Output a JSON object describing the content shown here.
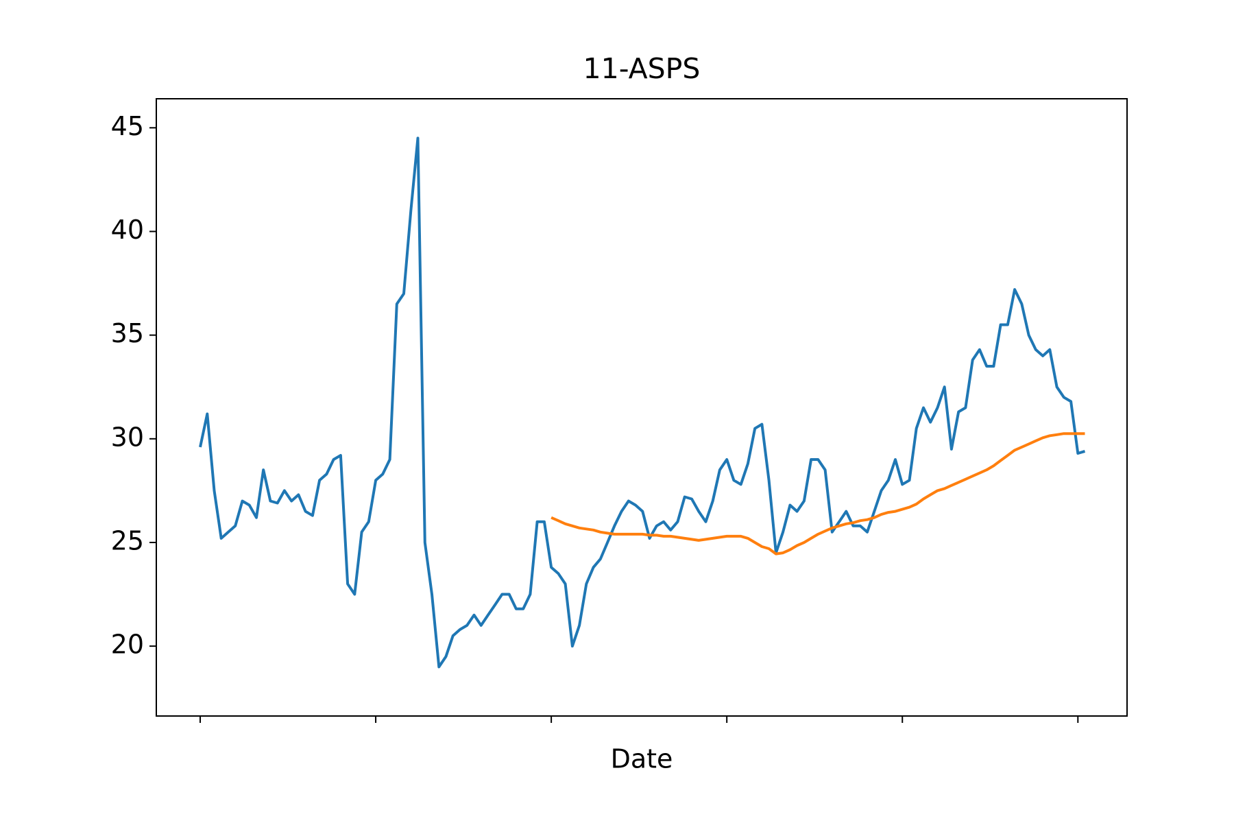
{
  "chart_data": {
    "type": "line",
    "title": "11-ASPS",
    "x_label": "Date",
    "x": [
      0,
      1,
      2,
      3,
      4,
      5,
      6,
      7,
      8,
      9,
      10,
      11,
      12,
      13,
      14,
      15,
      16,
      17,
      18,
      19,
      20,
      21,
      22,
      23,
      24,
      25,
      26,
      27,
      28,
      29,
      30,
      31,
      32,
      33,
      34,
      35,
      36,
      37,
      38,
      39,
      40,
      41,
      42,
      43,
      44,
      45,
      46,
      47,
      48,
      49,
      50,
      51,
      52,
      53,
      54,
      55,
      56,
      57,
      58,
      59,
      60,
      61,
      62,
      63,
      64,
      65,
      66,
      67,
      68,
      69,
      70,
      71,
      72,
      73,
      74,
      75,
      76,
      77,
      78,
      79,
      80,
      81,
      82,
      83,
      84,
      85,
      86,
      87,
      88,
      89,
      90,
      91,
      92,
      93,
      94,
      95,
      96,
      97,
      98,
      99,
      100,
      101,
      102,
      103,
      104,
      105,
      106,
      107,
      108,
      109,
      110,
      111,
      112,
      113,
      114,
      115,
      116,
      117,
      118,
      119,
      120,
      121,
      122,
      123,
      124,
      125,
      126
    ],
    "series": [
      {
        "color": "#1f77b4",
        "values": [
          29.6,
          31.2,
          27.5,
          25.2,
          25.5,
          25.8,
          27.0,
          26.8,
          26.2,
          28.5,
          27.0,
          26.9,
          27.5,
          27.0,
          27.3,
          26.5,
          26.3,
          28.0,
          28.3,
          29.0,
          29.2,
          23.0,
          22.5,
          25.5,
          26.0,
          28.0,
          28.3,
          29.0,
          36.5,
          37.0,
          41.0,
          44.5,
          25.0,
          22.5,
          19.0,
          19.5,
          20.5,
          20.8,
          21.0,
          21.5,
          21.0,
          21.5,
          22.0,
          22.5,
          22.5,
          21.8,
          21.8,
          22.5,
          26.0,
          26.0,
          23.8,
          23.5,
          23.0,
          20.0,
          21.0,
          23.0,
          23.8,
          24.2,
          25.0,
          25.8,
          26.5,
          27.0,
          26.8,
          26.5,
          25.2,
          25.8,
          26.0,
          25.6,
          26.0,
          27.2,
          27.1,
          26.5,
          26.0,
          27.0,
          28.5,
          29.0,
          28.0,
          27.8,
          28.8,
          30.5,
          30.7,
          28.0,
          24.5,
          25.5,
          26.8,
          26.5,
          27.0,
          29.0,
          29.0,
          28.5,
          25.5,
          26.0,
          26.5,
          25.8,
          25.8,
          25.5,
          26.5,
          27.5,
          28.0,
          29.0,
          27.8,
          28.0,
          30.5,
          31.5,
          30.8,
          31.5,
          32.5,
          29.5,
          31.3,
          31.5,
          33.8,
          34.3,
          33.5,
          33.5,
          35.5,
          35.5,
          37.2,
          36.5,
          35.0,
          34.3,
          34.0,
          34.3,
          32.5,
          32.0,
          31.8,
          29.3,
          29.4
        ]
      },
      {
        "color": "#ff7f0e",
        "values": [
          null,
          null,
          null,
          null,
          null,
          null,
          null,
          null,
          null,
          null,
          null,
          null,
          null,
          null,
          null,
          null,
          null,
          null,
          null,
          null,
          null,
          null,
          null,
          null,
          null,
          null,
          null,
          null,
          null,
          null,
          null,
          null,
          null,
          null,
          null,
          null,
          null,
          null,
          null,
          null,
          null,
          null,
          null,
          null,
          null,
          null,
          null,
          null,
          null,
          null,
          26.2,
          26.05,
          25.9,
          25.8,
          25.7,
          25.65,
          25.6,
          25.5,
          25.45,
          25.4,
          25.4,
          25.4,
          25.4,
          25.4,
          25.35,
          25.35,
          25.3,
          25.3,
          25.25,
          25.2,
          25.15,
          25.1,
          25.15,
          25.2,
          25.25,
          25.3,
          25.3,
          25.3,
          25.2,
          25.0,
          24.8,
          24.7,
          24.45,
          24.5,
          24.65,
          24.85,
          25.0,
          25.2,
          25.4,
          25.55,
          25.7,
          25.8,
          25.9,
          25.95,
          26.05,
          26.1,
          26.2,
          26.35,
          26.45,
          26.5,
          26.6,
          26.7,
          26.85,
          27.1,
          27.3,
          27.5,
          27.6,
          27.75,
          27.9,
          28.05,
          28.2,
          28.35,
          28.5,
          28.7,
          28.95,
          29.2,
          29.45,
          29.6,
          29.75,
          29.9,
          30.05,
          30.15,
          30.2,
          30.25,
          30.25,
          30.25,
          30.25
        ]
      }
    ],
    "xlim": [
      -6.25,
      132
    ],
    "xticks": [
      0,
      25,
      50,
      75,
      100,
      125
    ],
    "ylim": [
      16.63,
      46.4
    ],
    "yticks": [
      20,
      25,
      30,
      35,
      40,
      45
    ]
  }
}
